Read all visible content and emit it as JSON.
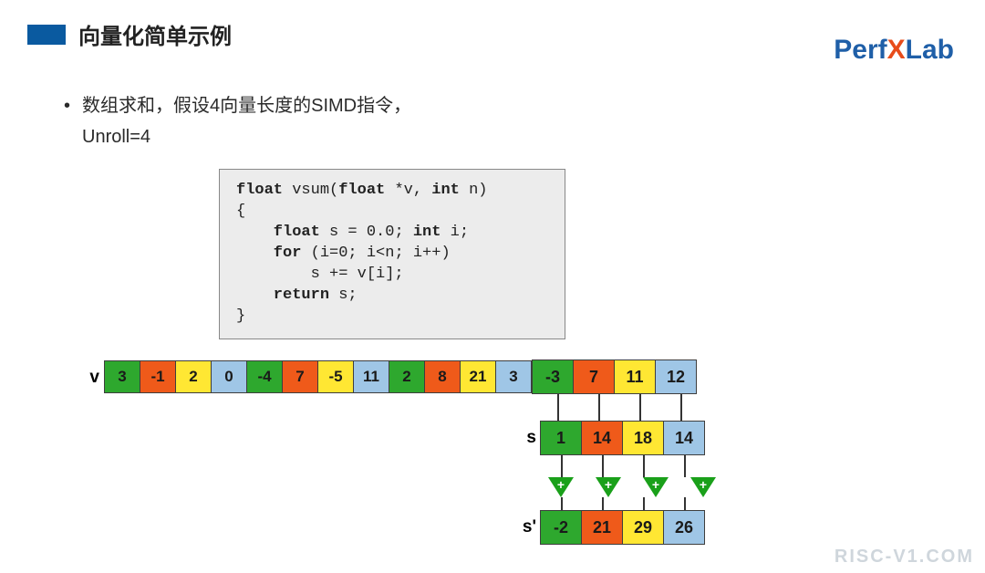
{
  "header": {
    "title": "向量化简单示例"
  },
  "logo": {
    "pre": "Perf",
    "x": "X",
    "post": "Lab"
  },
  "bullet": {
    "line1": "数组求和，假设4向量长度的SIMD指令，",
    "line2": "Unroll=4"
  },
  "code": {
    "l1a": "float",
    "l1b": " vsum(",
    "l1c": "float",
    "l1d": " *v, ",
    "l1e": "int",
    "l1f": " n)",
    "l2": "{",
    "l3a": "    float",
    "l3b": " s = 0.0; ",
    "l3c": "int",
    "l3d": " i;",
    "l4a": "    for",
    "l4b": " (i=0; i<n; i++)",
    "l5": "        s += v[i];",
    "l6a": "    return",
    "l6b": " s;",
    "l7": "}"
  },
  "colors": {
    "green": "#2ea82e",
    "orange": "#ef5a1a",
    "yellow": "#ffe733",
    "blue": "#9fc6e6",
    "border": "#3e3e3e"
  },
  "labels": {
    "v": "v",
    "s": "s",
    "sp": "s'"
  },
  "v_row": [
    {
      "v": "3",
      "c": "green"
    },
    {
      "v": "-1",
      "c": "orange"
    },
    {
      "v": "2",
      "c": "yellow"
    },
    {
      "v": "0",
      "c": "blue"
    },
    {
      "v": "-4",
      "c": "green"
    },
    {
      "v": "7",
      "c": "orange"
    },
    {
      "v": "-5",
      "c": "yellow"
    },
    {
      "v": "11",
      "c": "blue"
    },
    {
      "v": "2",
      "c": "green"
    },
    {
      "v": "8",
      "c": "orange"
    },
    {
      "v": "21",
      "c": "yellow"
    },
    {
      "v": "3",
      "c": "blue"
    },
    {
      "v": "-3",
      "c": "green"
    },
    {
      "v": "7",
      "c": "orange"
    },
    {
      "v": "11",
      "c": "yellow"
    },
    {
      "v": "12",
      "c": "blue"
    }
  ],
  "v_last4": [
    {
      "v": "-3",
      "c": "green"
    },
    {
      "v": "7",
      "c": "orange"
    },
    {
      "v": "11",
      "c": "yellow"
    },
    {
      "v": "12",
      "c": "blue"
    }
  ],
  "s_row": [
    {
      "v": "1",
      "c": "green"
    },
    {
      "v": "14",
      "c": "orange"
    },
    {
      "v": "18",
      "c": "yellow"
    },
    {
      "v": "14",
      "c": "blue"
    }
  ],
  "sp_row": [
    {
      "v": "-2",
      "c": "green"
    },
    {
      "v": "21",
      "c": "orange"
    },
    {
      "v": "29",
      "c": "yellow"
    },
    {
      "v": "26",
      "c": "blue"
    }
  ],
  "watermark": "RISC-V1.COM"
}
